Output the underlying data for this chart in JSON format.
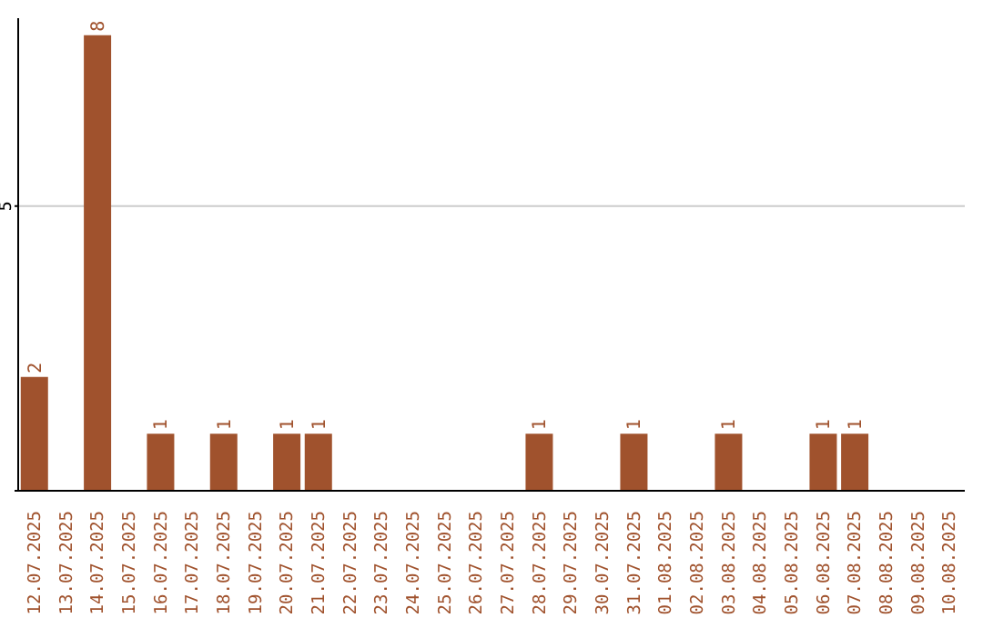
{
  "chart_data": {
    "type": "bar",
    "categories": [
      "12.07.2025",
      "13.07.2025",
      "14.07.2025",
      "15.07.2025",
      "16.07.2025",
      "17.07.2025",
      "18.07.2025",
      "19.07.2025",
      "20.07.2025",
      "21.07.2025",
      "22.07.2025",
      "23.07.2025",
      "24.07.2025",
      "25.07.2025",
      "26.07.2025",
      "27.07.2025",
      "28.07.2025",
      "29.07.2025",
      "30.07.2025",
      "31.07.2025",
      "01.08.2025",
      "02.08.2025",
      "03.08.2025",
      "04.08.2025",
      "05.08.2025",
      "06.08.2025",
      "07.08.2025",
      "08.08.2025",
      "09.08.2025",
      "10.08.2025"
    ],
    "values": [
      2,
      0,
      8,
      0,
      1,
      0,
      1,
      0,
      1,
      1,
      0,
      0,
      0,
      0,
      0,
      0,
      1,
      0,
      0,
      1,
      0,
      0,
      1,
      0,
      0,
      1,
      1,
      0,
      0,
      0
    ],
    "value_labels": [
      "2",
      null,
      "8",
      null,
      "1",
      null,
      "1",
      null,
      "1",
      "1",
      null,
      null,
      null,
      null,
      null,
      null,
      "1",
      null,
      null,
      "1",
      null,
      null,
      "1",
      null,
      null,
      "1",
      "1",
      null,
      null,
      null
    ],
    "color": "#a0522d",
    "ylim": [
      0,
      8.3
    ],
    "yticks": [
      {
        "value": 0,
        "label": null
      },
      5
    ],
    "grid": "y"
  }
}
